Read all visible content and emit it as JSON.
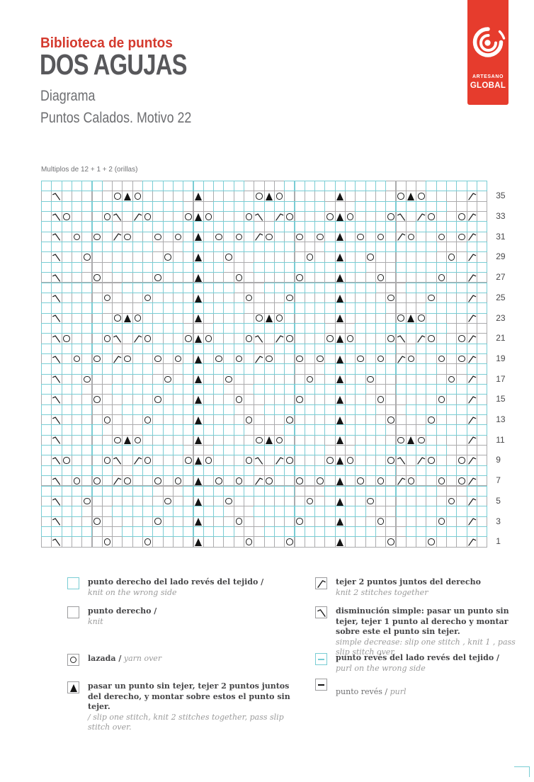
{
  "header": {
    "kicker": "Biblioteca de puntos",
    "title": "DOS AGUJAS",
    "subtitle1": "Diagrama",
    "subtitle2": "Puntos Calados. Motivo 22"
  },
  "logo": {
    "line1": "ARTESANO",
    "line2": "GLOBAL",
    "bg_color": "#e63c2d"
  },
  "chart": {
    "note": "Multiplos de 12 + 1 + 2 (orillas)",
    "cols": 44,
    "colors": {
      "cyan": "#79cdd4",
      "grid": "#ababad",
      "symbol": "#1f1f1f",
      "accent_red": "#d43a2e"
    },
    "symbol_key": {
      ".": "knit",
      "c": "knit-on-wrong-side",
      "o": "yarn-over",
      "A": "sl1-k2tog-psso",
      "r": "simple-decrease",
      "l": "k2tog"
    },
    "rows": [
      {
        "label": "",
        "cells": "cccccc....cccccccccc....cccccccccc....cccccc"
      },
      {
        "label": "35",
        "cells": ".r.....oAo.....A.....oAo.....A.....oAo....l."
      },
      {
        "label": "",
        "cells": "cccccccccccccc...ccccccccccc...ccccccccc...."
      },
      {
        "label": "33",
        "cells": ".ro...or.lo...oAo...or.lo...oAo...or.lo..ol."
      },
      {
        "label": "",
        "cells": "ccccccc..cccccccccccc..cccccccccccc..ccccccc"
      },
      {
        "label": "31",
        "cells": ".r.o.o.lo..o.o.A.o.o.lo..o.o.A.o.o.lo..o.ol."
      },
      {
        "label": "",
        "cells": "ccccccccccc...ccccccccccc...ccccccccccc...cc"
      },
      {
        "label": "29",
        "cells": ".r..o.......o..A..o.......o..A..o.......o.l."
      },
      {
        "label": "",
        "cells": "cccc...ccccccccccc...ccccccccccc...ccccccccc"
      },
      {
        "label": "27",
        "cells": ".r...o.....o...A...o.....o...A...o.....o..l."
      },
      {
        "label": "",
        "cells": "ccccc...ccccccccccc...ccccccccccc...cccccccc"
      },
      {
        "label": "25",
        "cells": ".r....o...o....A....o...o....A....o...o...l."
      },
      {
        "label": "",
        "cells": "cccccc....cccccccccc....cccccccccc....cccccc"
      },
      {
        "label": "23",
        "cells": ".r.....oAo.....A.....oAo.....A.....oAo....l."
      },
      {
        "label": "",
        "cells": "cccccccccccccc...ccccccccccc...ccccccccc...."
      },
      {
        "label": "21",
        "cells": ".ro...or.lo...oAo...or.lo...oAo...or.lo..ol."
      },
      {
        "label": "",
        "cells": "ccccccc..cccccccccccc..cccccccccccc..ccccccc"
      },
      {
        "label": "19",
        "cells": ".r.o.o.lo..o.o.A.o.o.lo..o.o.A.o.o.lo..o.ol."
      },
      {
        "label": "",
        "cells": "ccccccccccc...ccccccccccc...ccccccccccc...cc"
      },
      {
        "label": "17",
        "cells": ".r..o.......o..A..o.......o..A..o.......o.l."
      },
      {
        "label": "",
        "cells": "cccc...ccccccccccc...ccccccccccc...ccccccccc"
      },
      {
        "label": "15",
        "cells": ".r...o.....o...A...o.....o...A...o.....o..l."
      },
      {
        "label": "",
        "cells": "ccccc...ccccccccccc...ccccccccccc...cccccccc"
      },
      {
        "label": "13",
        "cells": ".r....o...o....A....o...o....A....o...o...l."
      },
      {
        "label": "",
        "cells": "cccccc....cccccccccc....cccccccccc....cccccc"
      },
      {
        "label": "11",
        "cells": ".r.....oAo.....A.....oAo.....A.....oAo....l."
      },
      {
        "label": "",
        "cells": "cccccccccccccc...ccccccccccc...ccccccccc...."
      },
      {
        "label": "9",
        "cells": ".ro...or.lo...oAo...or.lo...oAo...or.lo..ol."
      },
      {
        "label": "",
        "cells": "ccccccc..cccccccccccc..cccccccccccc..ccccccc"
      },
      {
        "label": "7",
        "cells": ".r.o.o.lo..o.o.A.o.o.lo..o.o.A.o.o.lo..o.ol."
      },
      {
        "label": "",
        "cells": "ccccccccccc...ccccccccccc...ccccccccccc...cc"
      },
      {
        "label": "5",
        "cells": ".r..o.......o..A..o.......o..A..o.......o.l."
      },
      {
        "label": "",
        "cells": "cccc...ccccccccccc...ccccccccccc...ccccccccc"
      },
      {
        "label": "3",
        "cells": ".r...o.....o...A...o.....o...A...o.....o..l."
      },
      {
        "label": "",
        "cells": "ccccc...ccccccccccc...ccccccccccc...cccccccc"
      },
      {
        "label": "1",
        "cells": ".r....o...o....A....o...o....A....o...o...l."
      }
    ]
  },
  "legend": {
    "left": [
      {
        "icon": "knit-ws-icon",
        "es": "punto derecho del lado revés del tejido /",
        "en": "knit on the wrong side",
        "inline": false
      },
      {
        "icon": "knit-icon",
        "es": "punto derecho  /",
        "en": "knit",
        "inline": false
      },
      {
        "icon": "yarn-over-icon",
        "es": "lazada /",
        "en": "yarn over",
        "inline": true
      },
      {
        "icon": "sl1-k2tog-psso-icon",
        "es": "pasar un punto sin tejer, tejer 2 puntos juntos del derecho, y montar sobre estos el punto sin tejer.",
        "en": "/ slip one stitch, knit 2 stitches together, pass slip stitch over.",
        "inline": false
      }
    ],
    "right": [
      {
        "icon": "k2tog-icon",
        "es": "tejer 2 puntos juntos del derecho",
        "en": "knit 2 stitches together",
        "inline": false
      },
      {
        "icon": "skp-icon",
        "es": "disminución simple: pasar un punto sin tejer, tejer 1 punto al derecho y montar sobre este el punto sin tejer.",
        "en": "simple decrease: slip one stitch , knit 1 , pass slip stitch over.",
        "inline": false
      },
      {
        "icon": "purl-ws-icon",
        "es": "punto revés del lado revés del tejido /",
        "en": "purl on the wrong side",
        "inline": false
      },
      {
        "icon": "purl-icon",
        "es": "punto revés /",
        "en": "purl",
        "inline": true
      }
    ]
  }
}
